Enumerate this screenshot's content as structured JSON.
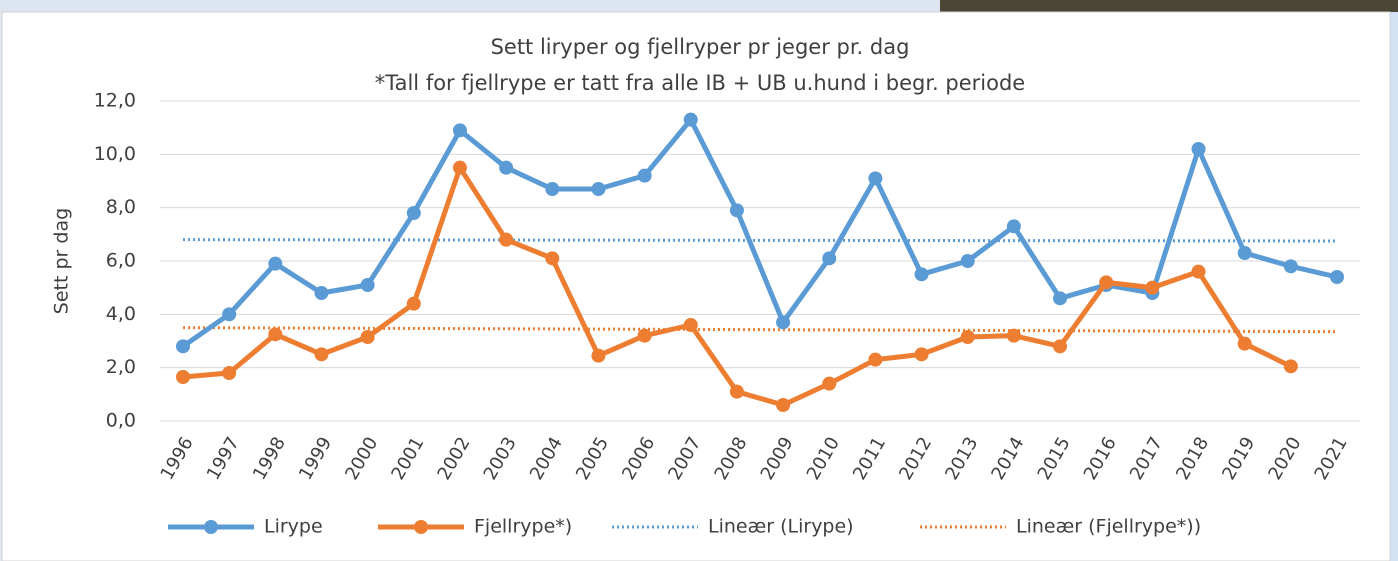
{
  "chart_data": {
    "type": "line",
    "title": "Sett liryper og fjellryper pr jeger pr. dag",
    "subtitle": "*Tall for fjellrype er tatt fra alle IB + UB u.hund i begr. periode",
    "y_label": "Sett pr dag",
    "categories": [
      "1996",
      "1997",
      "1998",
      "1999",
      "2000",
      "2001",
      "2002",
      "2003",
      "2004",
      "2005",
      "2006",
      "2007",
      "2008",
      "2009",
      "2010",
      "2011",
      "2012",
      "2013",
      "2014",
      "2015",
      "2016",
      "2017",
      "2018",
      "2019",
      "2020",
      "2021"
    ],
    "series": [
      {
        "name": "Lirype",
        "color": "#5b9bd5",
        "values": [
          2.8,
          4.0,
          5.9,
          4.8,
          5.1,
          7.8,
          10.9,
          9.5,
          8.7,
          8.7,
          9.2,
          11.3,
          7.9,
          3.7,
          6.1,
          9.1,
          5.5,
          6.0,
          7.3,
          4.6,
          5.1,
          4.8,
          10.2,
          6.3,
          5.8,
          5.4
        ]
      },
      {
        "name": "Fjellrype*)",
        "color": "#ed7d31",
        "values": [
          1.65,
          1.8,
          3.25,
          2.5,
          3.15,
          4.4,
          9.5,
          6.8,
          6.1,
          2.45,
          3.2,
          3.6,
          1.1,
          0.6,
          1.4,
          2.3,
          2.5,
          3.15,
          3.2,
          2.8,
          5.2,
          5.0,
          5.6,
          2.9,
          2.05,
          null
        ]
      }
    ],
    "trendlines": [
      {
        "name": "Lineær (Lirype)",
        "color": "#5b9bd5",
        "values": [
          6.8,
          6.75
        ]
      },
      {
        "name": "Lineær (Fjellrype*))",
        "color": "#ed7d31",
        "values": [
          3.5,
          3.35
        ]
      }
    ],
    "ylim": [
      0,
      12
    ],
    "yticks": [
      {
        "value": 0,
        "label": "0,0"
      },
      {
        "value": 2,
        "label": "2,0"
      },
      {
        "value": 4,
        "label": "4,0"
      },
      {
        "value": 6,
        "label": "6,0"
      },
      {
        "value": 8,
        "label": "8,0"
      },
      {
        "value": 10,
        "label": "10,0"
      },
      {
        "value": 12,
        "label": "12,0"
      }
    ],
    "grid": true,
    "legend": "bottom"
  }
}
